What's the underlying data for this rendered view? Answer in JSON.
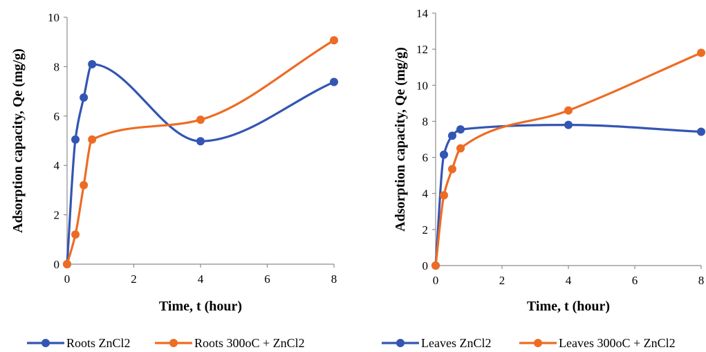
{
  "colors": {
    "blue": "#3355b3",
    "orange": "#ed6c24",
    "axis": "#8c8c8c"
  },
  "chart_data": [
    {
      "type": "line",
      "xlabel": "Time, t (hour)",
      "ylabel": "Adsorption capacity, Qe (mg/g)",
      "xlim": [
        0,
        8
      ],
      "ylim": [
        0,
        10
      ],
      "xticks": [
        0,
        2,
        4,
        6,
        8
      ],
      "yticks": [
        0,
        2,
        4,
        6,
        8,
        10
      ],
      "smooth": true,
      "grid": false,
      "legend_position": "bottom",
      "series": [
        {
          "name": "Roots ZnCl2",
          "color": "#3355b3",
          "x": [
            0,
            0.25,
            0.5,
            0.75,
            4,
            8
          ],
          "y": [
            0,
            5.05,
            6.75,
            8.1,
            4.98,
            7.38
          ]
        },
        {
          "name": "Roots 300oC + ZnCl2",
          "color": "#ed6c24",
          "x": [
            0,
            0.25,
            0.5,
            0.75,
            4,
            8
          ],
          "y": [
            0,
            1.2,
            3.2,
            5.05,
            5.85,
            9.07
          ]
        }
      ]
    },
    {
      "type": "line",
      "xlabel": "Time, t (hour)",
      "ylabel": "Adsorption capacity, Qe (mg/g)",
      "xlim": [
        0,
        8
      ],
      "ylim": [
        0,
        14
      ],
      "xticks": [
        0,
        2,
        4,
        6,
        8
      ],
      "yticks": [
        0,
        2,
        4,
        6,
        8,
        10,
        12,
        14
      ],
      "smooth": true,
      "grid": false,
      "legend_position": "bottom",
      "series": [
        {
          "name": "Leaves ZnCl2",
          "color": "#3355b3",
          "x": [
            0,
            0.25,
            0.5,
            0.75,
            4,
            8
          ],
          "y": [
            0,
            6.15,
            7.2,
            7.55,
            7.8,
            7.42
          ]
        },
        {
          "name": "Leaves 300oC + ZnCl2",
          "color": "#ed6c24",
          "x": [
            0,
            0.25,
            0.5,
            0.75,
            4,
            8
          ],
          "y": [
            0,
            3.9,
            5.35,
            6.5,
            8.6,
            11.8
          ]
        }
      ]
    }
  ]
}
